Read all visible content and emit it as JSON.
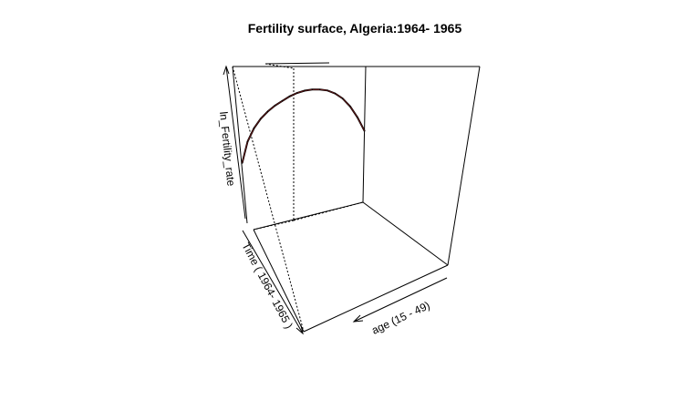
{
  "chart_data": {
    "type": "line",
    "title": "Fertility surface, Algeria:1964- 1965",
    "xlabel": "age (15 - 49)",
    "ylabel": "Time ( 1964- 1965 )",
    "zlabel": "ln_Fertility_rate",
    "xlim": [
      15,
      49
    ],
    "ylim": [
      1964,
      1965
    ],
    "zlim": [
      -6,
      0
    ],
    "series": [
      {
        "x": [
          15,
          17,
          19,
          21,
          23,
          25,
          27,
          29,
          31,
          33,
          35,
          37,
          39,
          41,
          43,
          45,
          47,
          49
        ],
        "y": [
          1964,
          1964,
          1964,
          1964,
          1964,
          1964,
          1964,
          1964,
          1964,
          1964,
          1964,
          1964,
          1964,
          1964,
          1964,
          1964,
          1964,
          1964
        ],
        "z": [
          -3.45,
          -2.55,
          -2.0,
          -1.6,
          -1.3,
          -1.05,
          -0.85,
          -0.65,
          -0.5,
          -0.4,
          -0.35,
          -0.35,
          -0.4,
          -0.55,
          -0.8,
          -1.2,
          -1.75,
          -2.45
        ]
      }
    ]
  }
}
